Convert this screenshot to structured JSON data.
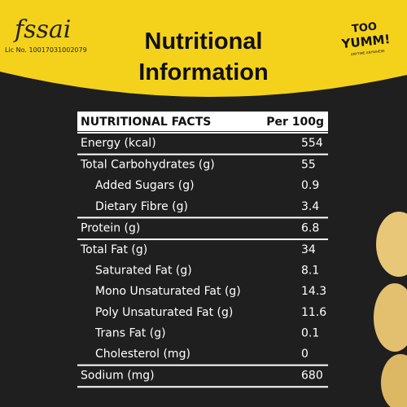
{
  "header": {
    "logo": "fssai",
    "license": "Lic No. 10017031002079",
    "title": [
      "Nutritional",
      "Information"
    ],
    "brand": [
      "TOO",
      "YUMM!"
    ],
    "tagline": "ANYTIME ANYWHERE"
  },
  "table": {
    "header": [
      "NUTRITIONAL FACTS",
      "Per 100g"
    ],
    "sections": [
      {
        "rows": [
          [
            "Energy (kcal)",
            "554"
          ]
        ]
      },
      {
        "rows": [
          [
            "Total Carbohydrates (g)",
            "55"
          ],
          [
            "Added Sugars (g)",
            "0.9"
          ],
          [
            "Dietary Fibre (g)",
            "3.4"
          ]
        ]
      },
      {
        "rows": [
          [
            "Protein (g)",
            "6.8"
          ]
        ]
      },
      {
        "rows": [
          [
            "Total Fat (g)",
            "34"
          ],
          [
            "Saturated Fat (g)",
            "8.1"
          ],
          [
            "Mono Unsaturated Fat (g)",
            "14.3"
          ],
          [
            "Poly Unsaturated Fat (g)",
            "11.6"
          ],
          [
            "Trans Fat (g)",
            "0.1"
          ],
          [
            "Cholesterol (mg)",
            "0"
          ]
        ]
      },
      {
        "rows": [
          [
            "Sodium (mg)",
            "680"
          ]
        ]
      }
    ]
  }
}
